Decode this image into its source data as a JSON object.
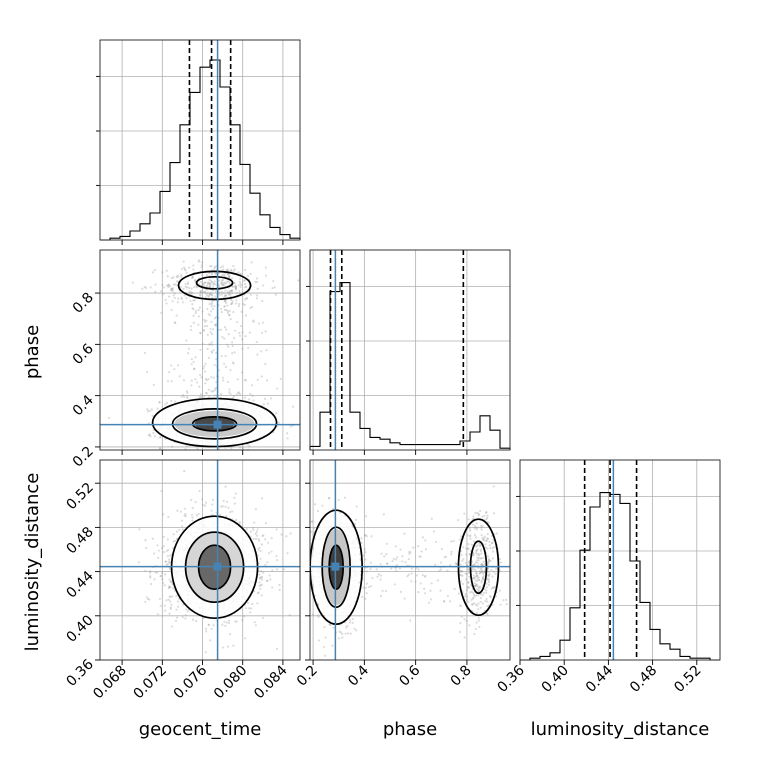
{
  "chart_data": {
    "type": "corner",
    "parameters": [
      "geocent_time",
      "phase",
      "luminosity_distance"
    ],
    "ranges": {
      "geocent_time": [
        0.0658,
        0.0857
      ],
      "phase": [
        0.188,
        0.968
      ],
      "luminosity_distance": [
        0.36,
        0.541
      ]
    },
    "ticks": {
      "geocent_time": [
        0.068,
        0.072,
        0.076,
        0.08,
        0.084
      ],
      "phase": [
        0.2,
        0.4,
        0.6,
        0.8
      ],
      "luminosity_distance": [
        0.36,
        0.4,
        0.44,
        0.48,
        0.52
      ]
    },
    "tick_labels": {
      "geocent_time": [
        "0.068",
        "0.072",
        "0.076",
        "0.080",
        "0.084"
      ],
      "phase": [
        "0.2",
        "0.4",
        "0.6",
        "0.8"
      ],
      "luminosity_distance": [
        "0.36",
        "0.40",
        "0.44",
        "0.48",
        "0.52"
      ]
    },
    "truths": {
      "geocent_time": 0.0775,
      "phase": 0.287,
      "luminosity_distance": 0.4445
    },
    "quantiles": {
      "geocent_time": [
        0.0747,
        0.0769,
        0.0788
      ],
      "phase": [
        0.268,
        0.312,
        0.786
      ],
      "luminosity_distance": [
        0.4185,
        0.4415,
        0.4655
      ]
    },
    "histograms": {
      "geocent_time": [
        0,
        0.01,
        0.02,
        0.05,
        0.09,
        0.15,
        0.27,
        0.43,
        0.64,
        0.82,
        0.96,
        1.0,
        0.85,
        0.64,
        0.42,
        0.26,
        0.14,
        0.07,
        0.03,
        0.01
      ],
      "phase": [
        0.02,
        0.21,
        0.88,
        0.93,
        0.21,
        0.12,
        0.07,
        0.06,
        0.04,
        0.03,
        0.03,
        0.03,
        0.03,
        0.03,
        0.03,
        0.05,
        0.1,
        0.19,
        0.11,
        0.01
      ],
      "luminosity_distance": [
        0,
        0.01,
        0.02,
        0.04,
        0.11,
        0.29,
        0.61,
        0.85,
        0.93,
        0.92,
        0.87,
        0.55,
        0.32,
        0.17,
        0.09,
        0.06,
        0.02,
        0.01,
        0.01,
        0
      ]
    },
    "contour_levels": 3,
    "grid": true,
    "colors": {
      "truth": "#4682b4",
      "hist": "#000000",
      "points": "#9a9a9a"
    }
  }
}
